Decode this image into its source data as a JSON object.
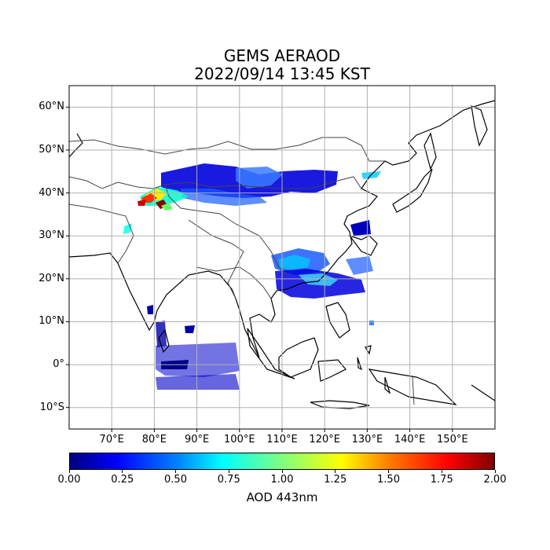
{
  "title_line1": "GEMS AERAOD",
  "title_line2": "2022/09/14 13:45 KST",
  "map": {
    "lon_range": [
      60,
      160
    ],
    "lat_range": [
      -15,
      65
    ],
    "lat_ticks": [
      {
        "value": 60,
        "label": "60°N"
      },
      {
        "value": 50,
        "label": "50°N"
      },
      {
        "value": 40,
        "label": "40°N"
      },
      {
        "value": 30,
        "label": "30°N"
      },
      {
        "value": 20,
        "label": "20°N"
      },
      {
        "value": 10,
        "label": "10°N"
      },
      {
        "value": 0,
        "label": "0°"
      },
      {
        "value": -10,
        "label": "10°S"
      }
    ],
    "lon_ticks": [
      {
        "value": 70,
        "label": "70°E"
      },
      {
        "value": 80,
        "label": "80°E"
      },
      {
        "value": 90,
        "label": "90°E"
      },
      {
        "value": 100,
        "label": "100°E"
      },
      {
        "value": 110,
        "label": "110°E"
      },
      {
        "value": 120,
        "label": "120°E"
      },
      {
        "value": 130,
        "label": "130°E"
      },
      {
        "value": 140,
        "label": "140°E"
      },
      {
        "value": 150,
        "label": "150°E"
      }
    ],
    "grid": true
  },
  "colorbar": {
    "label": "AOD 443nm",
    "range": [
      0,
      2
    ],
    "ticks": [
      {
        "value": 0.0,
        "label": "0.00"
      },
      {
        "value": 0.25,
        "label": "0.25"
      },
      {
        "value": 0.5,
        "label": "0.50"
      },
      {
        "value": 0.75,
        "label": "0.75"
      },
      {
        "value": 1.0,
        "label": "1.00"
      },
      {
        "value": 1.25,
        "label": "1.25"
      },
      {
        "value": 1.5,
        "label": "1.50"
      },
      {
        "value": 1.75,
        "label": "1.75"
      },
      {
        "value": 2.0,
        "label": "2.00"
      }
    ],
    "colormap": "jet"
  }
}
